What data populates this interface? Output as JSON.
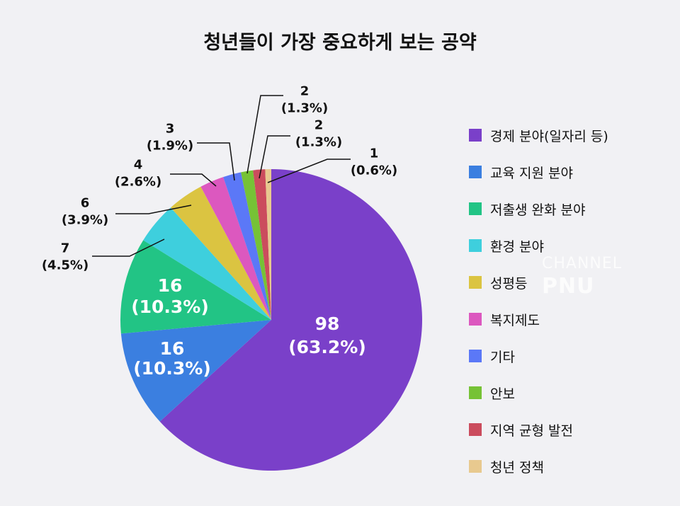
{
  "chart_data": {
    "type": "pie",
    "title": "청년들이 가장 중요하게 보는 공약",
    "legend_position": "right",
    "start_angle": "12 o'clock",
    "direction": "clockwise",
    "slices": [
      {
        "label": "경제 분야(일자리 등)",
        "value": 98,
        "percent": "63.2%",
        "color": "#7a40c9"
      },
      {
        "label": "교육 지원 분야",
        "value": 16,
        "percent": "10.3%",
        "color": "#3b7fe0"
      },
      {
        "label": "저출생 완화 분야",
        "value": 16,
        "percent": "10.3%",
        "color": "#22c485"
      },
      {
        "label": "환경 분야",
        "value": 7,
        "percent": "4.5%",
        "color": "#3ecfdd"
      },
      {
        "label": "성평등",
        "value": 6,
        "percent": "3.9%",
        "color": "#dbc441"
      },
      {
        "label": "복지제도",
        "value": 4,
        "percent": "2.6%",
        "color": "#dc58bf"
      },
      {
        "label": "기타",
        "value": 3,
        "percent": "1.9%",
        "color": "#5b78f7"
      },
      {
        "label": "안보",
        "value": 2,
        "percent": "1.3%",
        "color": "#76c236"
      },
      {
        "label": "지역 균형 발전",
        "value": 2,
        "percent": "1.3%",
        "color": "#cb4c5d"
      },
      {
        "label": "청년 정책",
        "value": 1,
        "percent": "0.6%",
        "color": "#e8c98f"
      }
    ]
  },
  "watermark": {
    "text_small": "CHANNEL",
    "text_large": "PNU"
  }
}
